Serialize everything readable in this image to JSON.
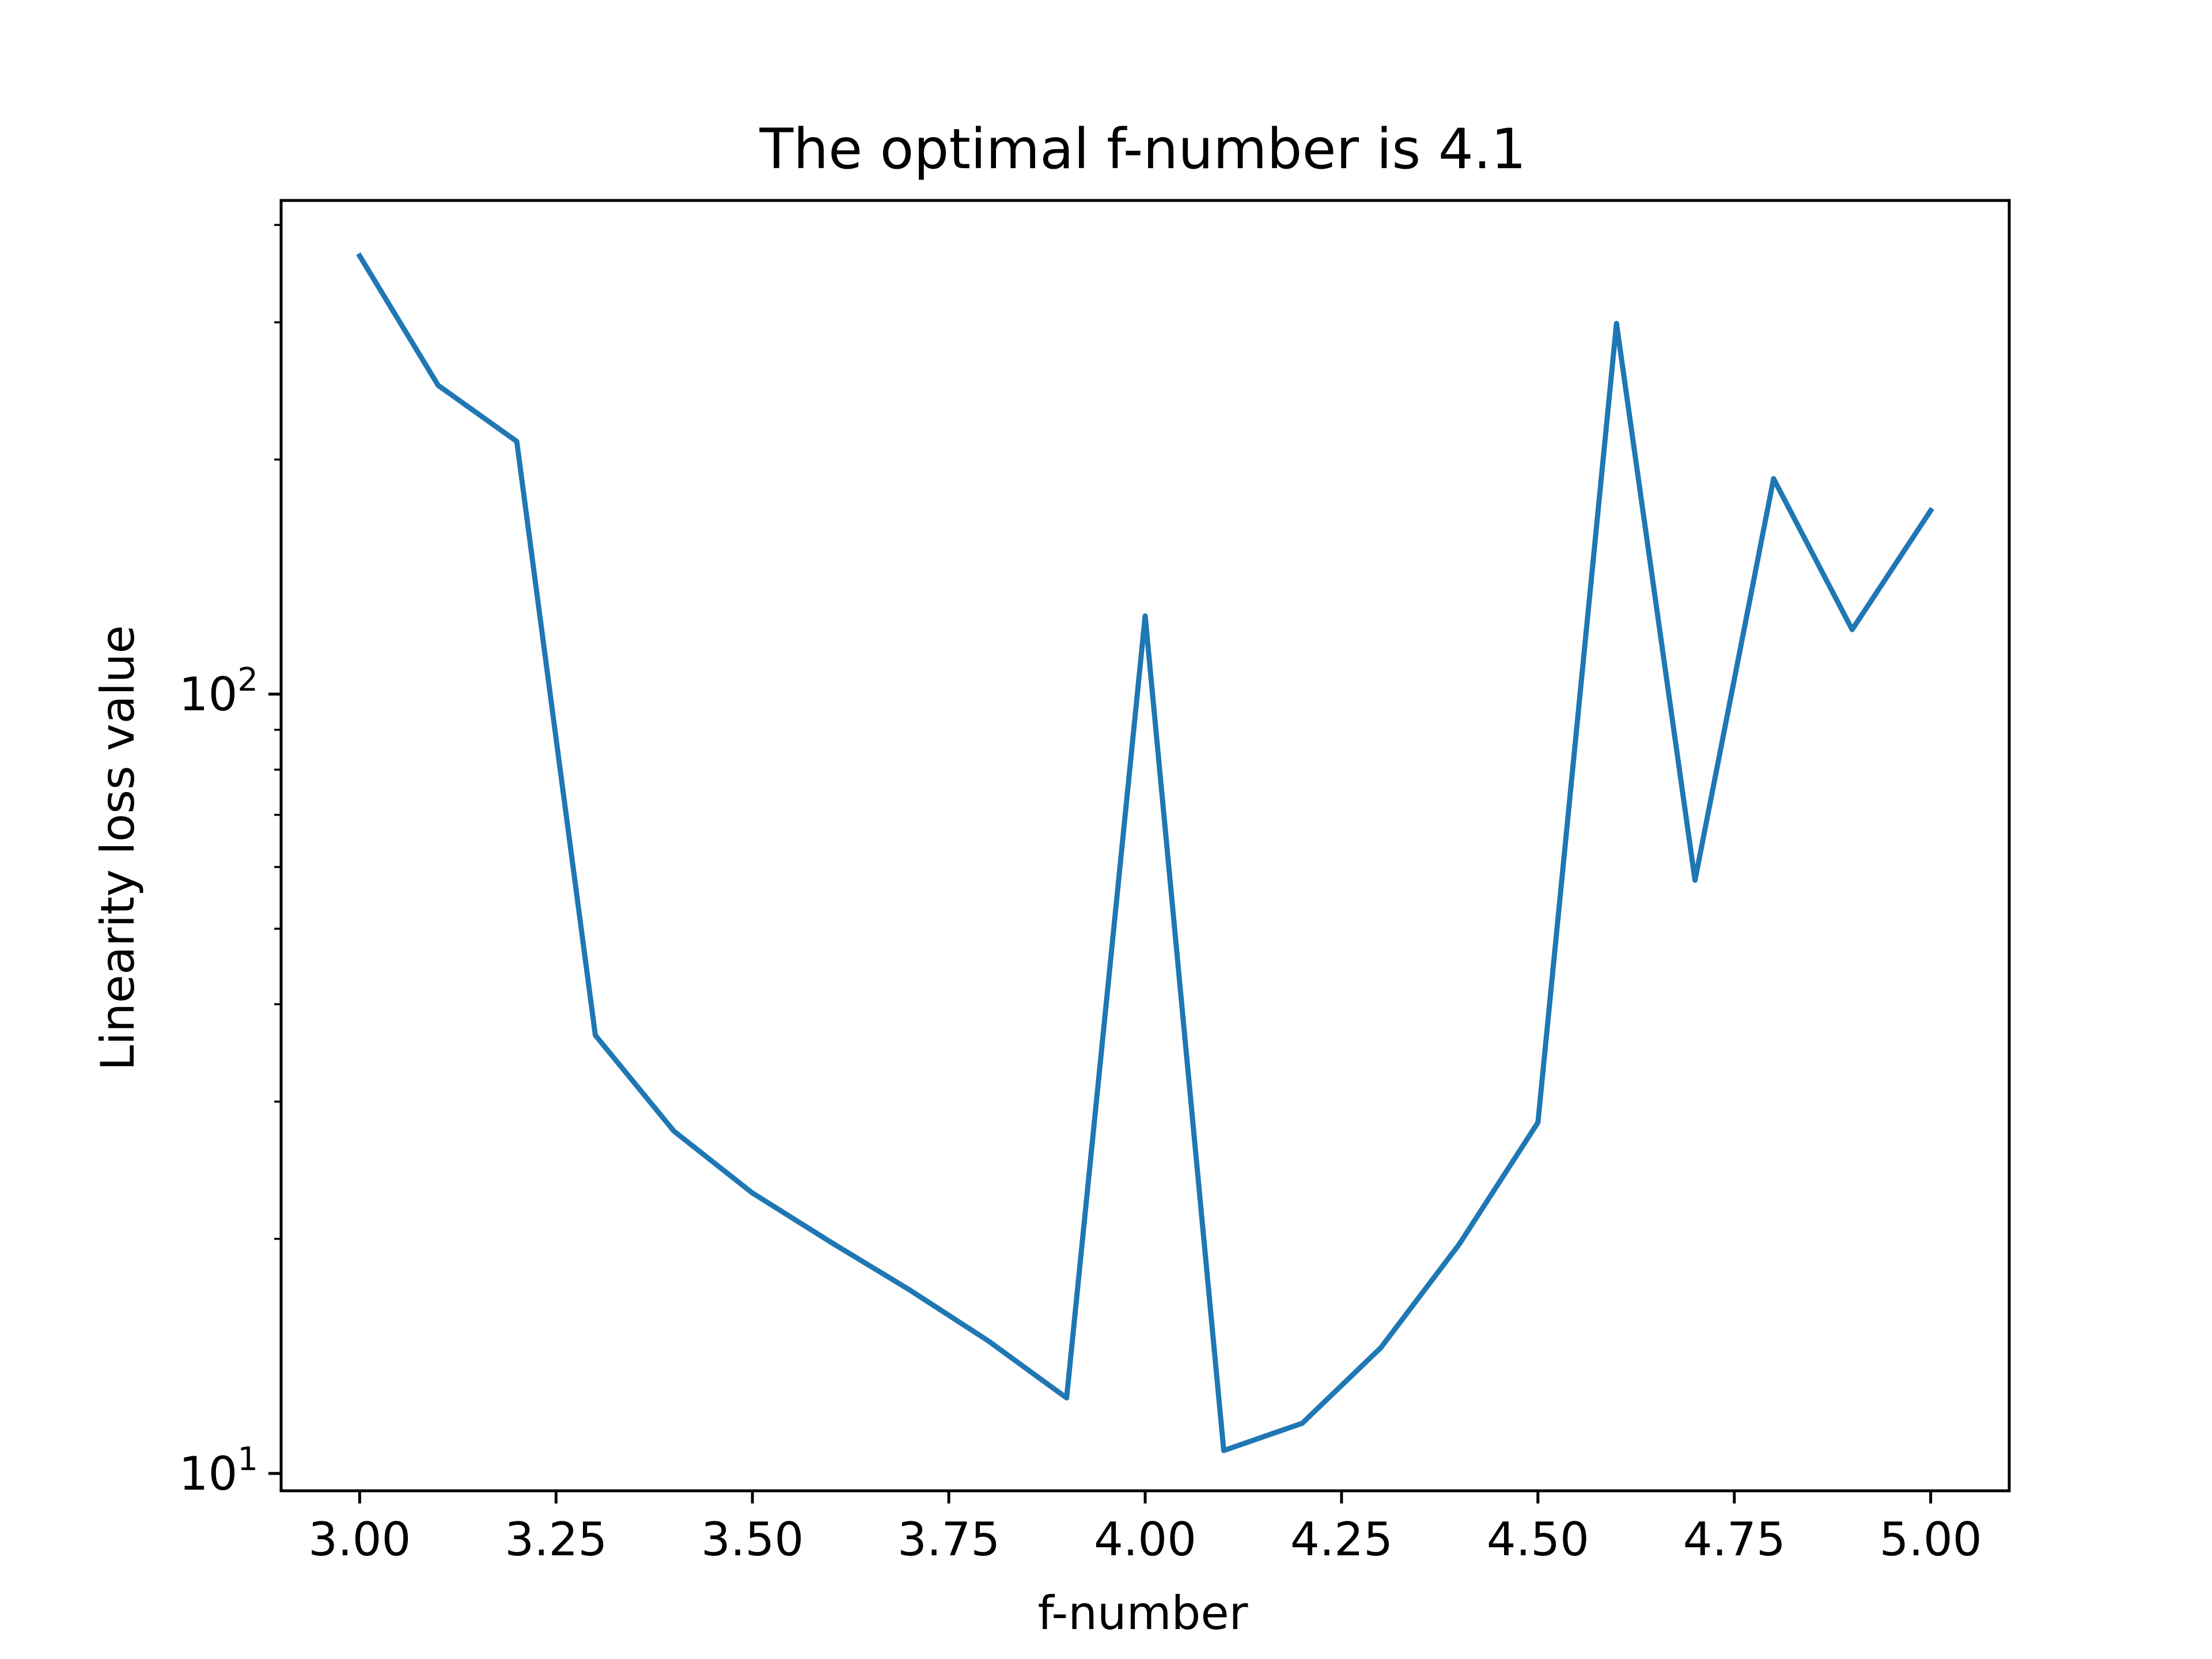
{
  "chart_data": {
    "type": "line",
    "title": "The optimal f-number is 4.1",
    "xlabel": "f-number",
    "ylabel": "Linearity loss value",
    "xlim": [
      2.9,
      5.1
    ],
    "ylim": [
      9.5,
      430
    ],
    "yscale": "log",
    "grid": false,
    "x_ticks": [
      3.0,
      3.25,
      3.5,
      3.75,
      4.0,
      4.25,
      4.5,
      4.75,
      5.0
    ],
    "x_tick_labels": [
      "3.00",
      "3.25",
      "3.50",
      "3.75",
      "4.00",
      "4.25",
      "4.50",
      "4.75",
      "5.00"
    ],
    "y_major_ticks": [
      {
        "value": 10,
        "base": "10",
        "exponent": "1"
      },
      {
        "value": 100,
        "base": "10",
        "exponent": "2"
      }
    ],
    "y_minor_ticks": [
      20,
      30,
      40,
      50,
      60,
      70,
      80,
      90,
      200,
      300,
      400
    ],
    "series": [
      {
        "color": "#1f77b4",
        "x": [
          3.0,
          3.1,
          3.2,
          3.3,
          3.4,
          3.5,
          3.6,
          3.7,
          3.8,
          3.9,
          4.0,
          4.1,
          4.2,
          4.3,
          4.4,
          4.5,
          4.6,
          4.7,
          4.8,
          4.9,
          5.0
        ],
        "y": [
          365,
          249,
          211,
          36.5,
          27.5,
          22.9,
          19.8,
          17.2,
          14.8,
          12.5,
          126,
          10.7,
          11.6,
          14.5,
          19.7,
          28.2,
          299,
          57.7,
          189,
          121,
          172
        ]
      }
    ]
  }
}
